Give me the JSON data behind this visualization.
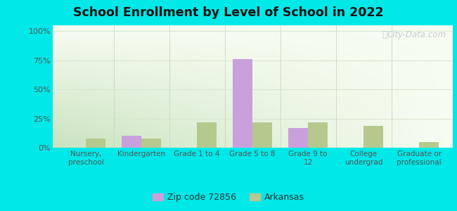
{
  "title": "School Enrollment by Level of School in 2022",
  "categories": [
    "Nursery,\npreschool",
    "Kindergarten",
    "Grade 1 to 4",
    "Grade 5 to 8",
    "Grade 9 to\n12",
    "College\nundergrad",
    "Graduate or\nprofessional"
  ],
  "zip_values": [
    0,
    10,
    0,
    76,
    17,
    0,
    0
  ],
  "ar_values": [
    8,
    8,
    22,
    22,
    22,
    19,
    5
  ],
  "zip_color": "#c9a0dc",
  "ar_color": "#b5c98e",
  "background_outer": "#00e8e8",
  "yticks": [
    0,
    25,
    50,
    75,
    100
  ],
  "ylim": [
    0,
    105
  ],
  "bar_width": 0.35,
  "legend_zip": "Zip code 72856",
  "legend_ar": "Arkansas",
  "watermark": "City-Data.com",
  "grad_bottom_left": "#c8dba0",
  "grad_top_right": "#f5f9f2",
  "grid_color": "#d8e8d0",
  "separator_color": "#c8d8c0",
  "tick_color": "#555555",
  "title_color": "#111111"
}
